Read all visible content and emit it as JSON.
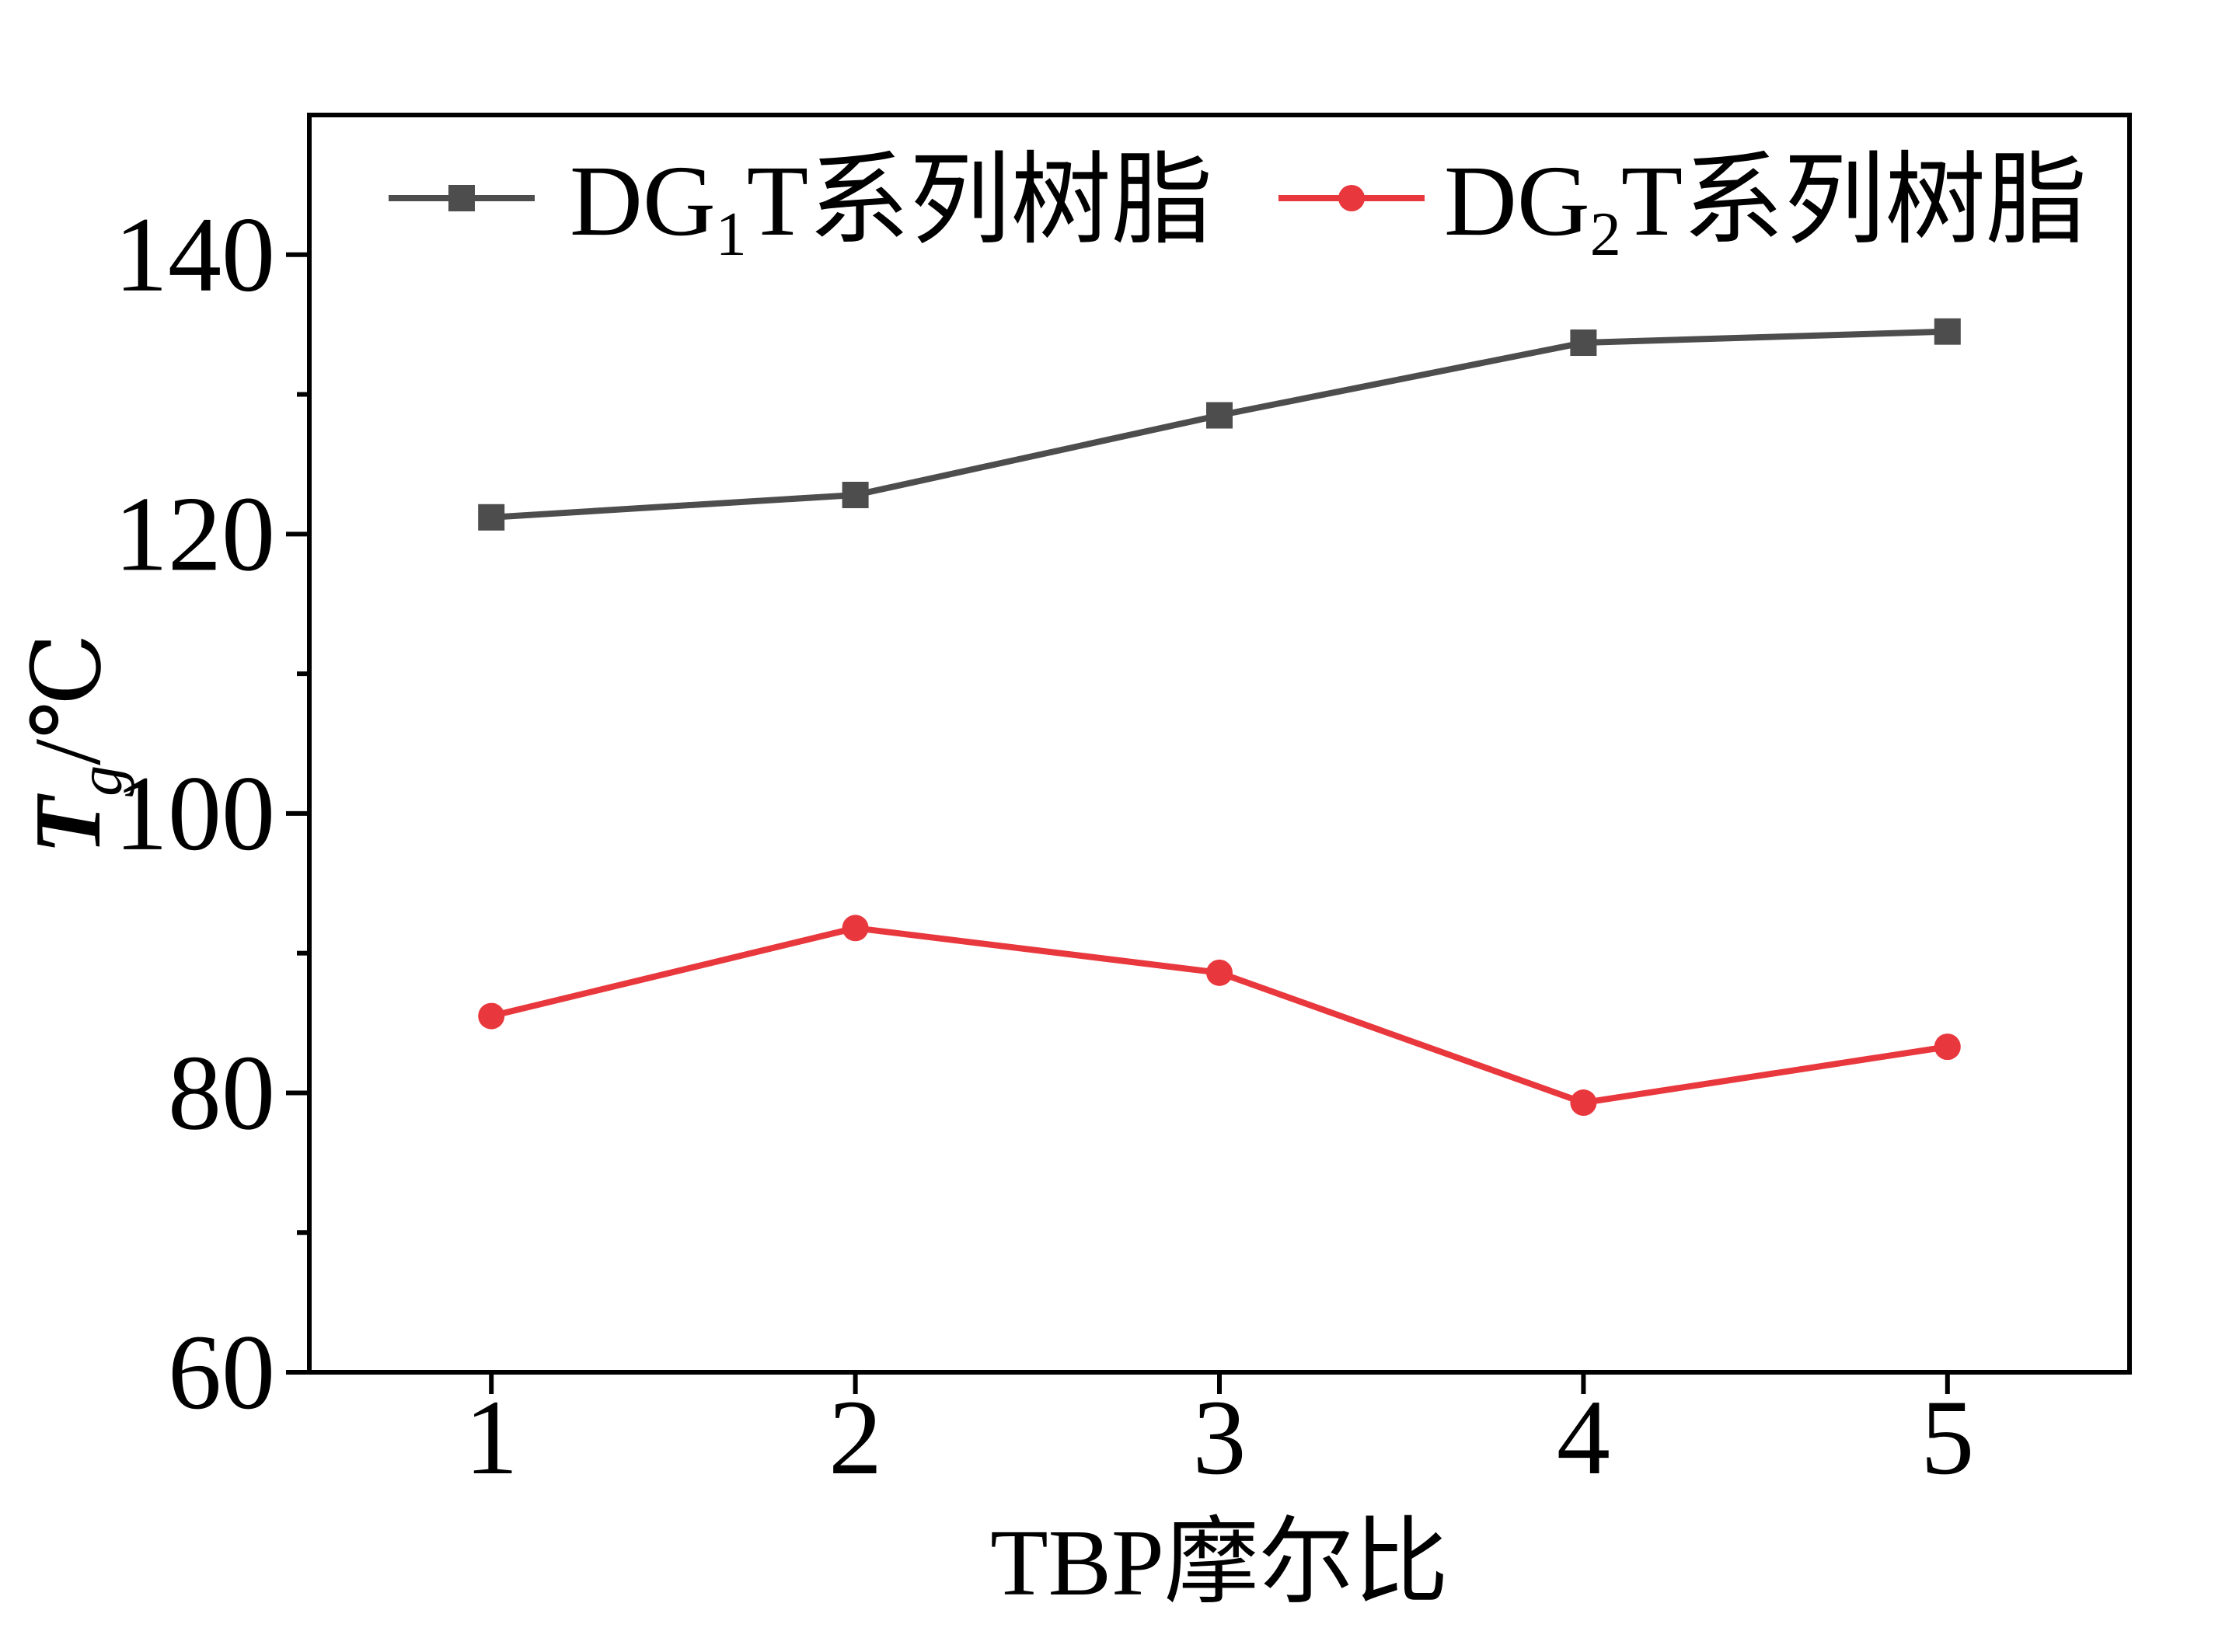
{
  "chart_data": {
    "type": "line",
    "x": [
      1,
      2,
      3,
      4,
      5
    ],
    "xlim": [
      0.5,
      5.5
    ],
    "ylim": [
      60,
      150
    ],
    "xticks": [
      1,
      2,
      3,
      4,
      5
    ],
    "yticks": [
      60,
      80,
      100,
      120,
      140
    ],
    "yminor_ticks": [
      70,
      90,
      110,
      130
    ],
    "xlabel": "TBP摩尔比",
    "ylabel": {
      "main": "T",
      "sub": "g",
      "unit": "/℃"
    },
    "legend": "top",
    "grid": false,
    "series": [
      {
        "name": "DG1T系列树脂",
        "name_parts": {
          "pre": "DG",
          "sub": "1",
          "post": "T系列树脂"
        },
        "marker": "square",
        "color": "#4d4d4d",
        "values": [
          121.2,
          122.8,
          128.5,
          133.7,
          134.5
        ]
      },
      {
        "name": "DG2T系列树脂",
        "name_parts": {
          "pre": "DG",
          "sub": "2",
          "post": "T系列树脂"
        },
        "marker": "circle",
        "color": "#e8383d",
        "values": [
          85.5,
          91.8,
          88.6,
          79.3,
          83.3
        ]
      }
    ]
  }
}
